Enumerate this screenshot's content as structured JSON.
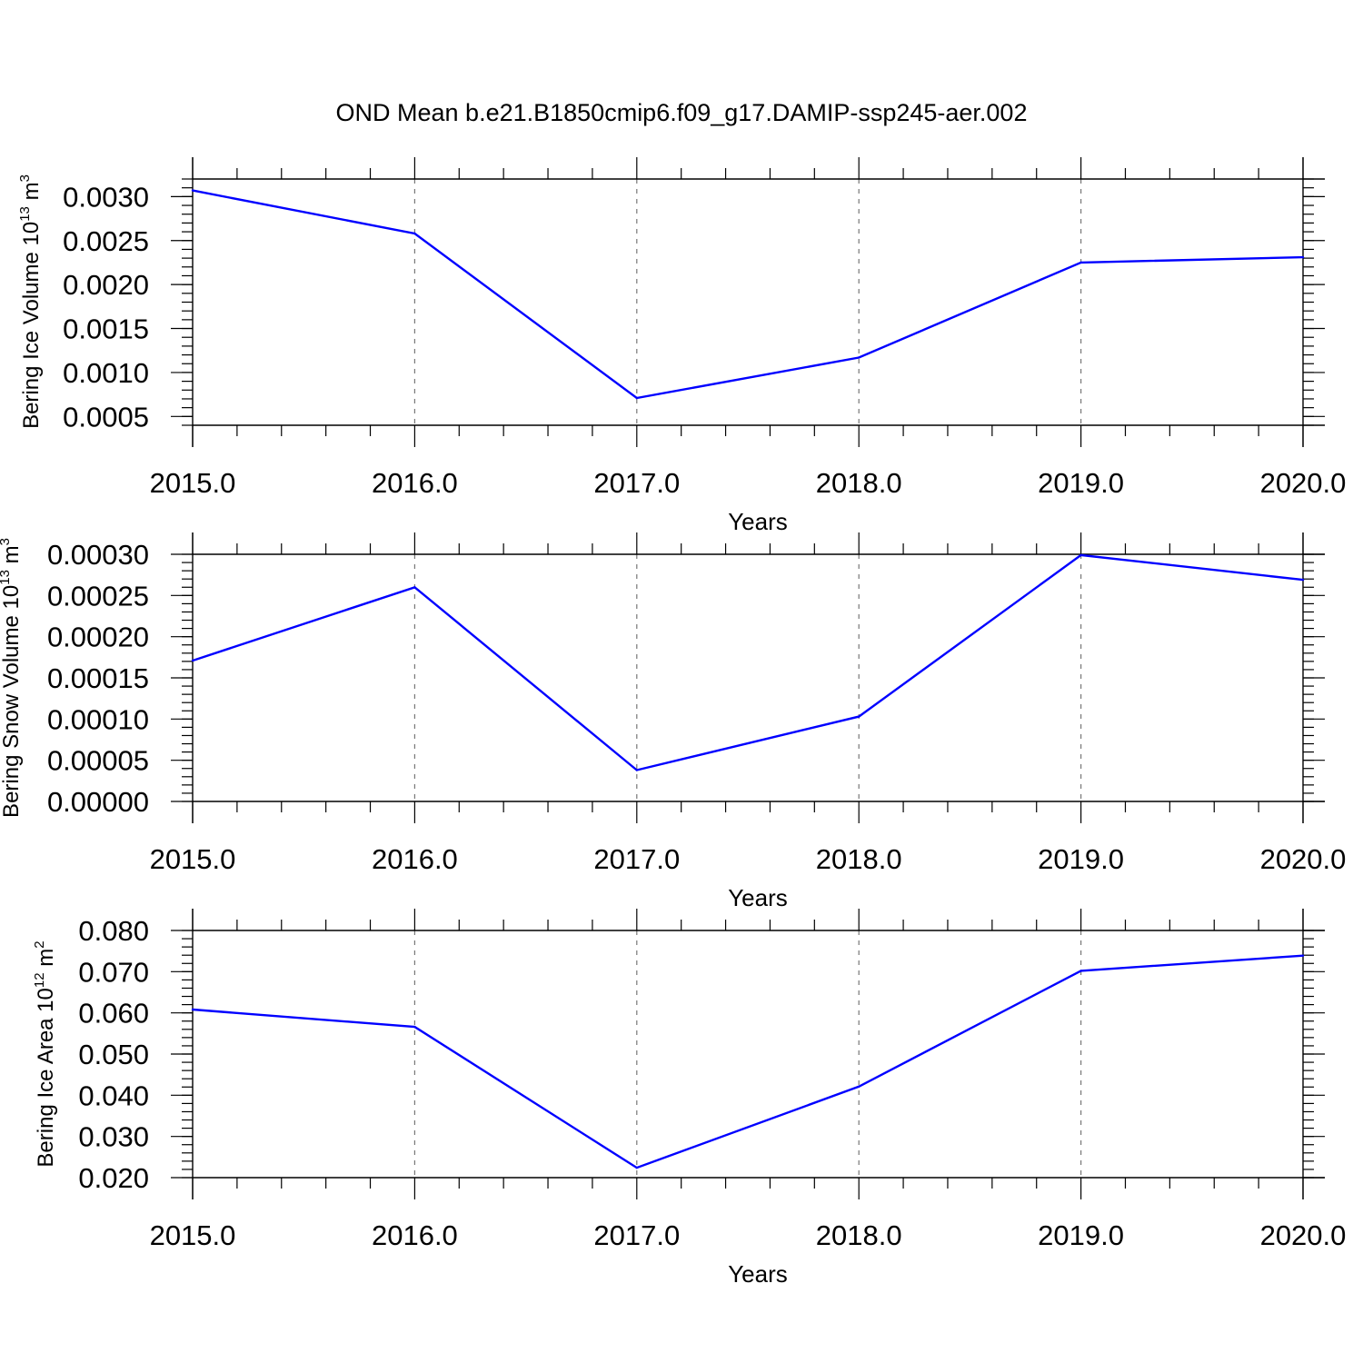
{
  "title": "OND Mean b.e21.B1850cmip6.f09_g17.DAMIP-ssp245-aer.002",
  "colors": {
    "series": "#0000ff",
    "grid": "#777777"
  },
  "chart_data": [
    {
      "type": "line",
      "ylabel": {
        "text": "Bering Ice Volume 10",
        "exp": "13",
        "unit": " m",
        "unit_exp": "3"
      },
      "xlabel": "Years",
      "x": [
        2015,
        2016,
        2017,
        2018,
        2019,
        2020
      ],
      "xticklabels": [
        "2015.0",
        "2016.0",
        "2017.0",
        "2018.0",
        "2019.0",
        "2020.0"
      ],
      "series": [
        {
          "values": [
            0.00307,
            0.00258,
            0.00071,
            0.00117,
            0.00225,
            0.00231
          ]
        }
      ],
      "xlim": [
        2015,
        2020
      ],
      "ylim": [
        0.0004,
        0.0032
      ],
      "yticks": [
        0.0005,
        0.001,
        0.0015,
        0.002,
        0.0025,
        0.003
      ],
      "yticklabels": [
        "0.0005",
        "0.0010",
        "0.0015",
        "0.0020",
        "0.0025",
        "0.0030"
      ],
      "yminor": 0.0001,
      "grid": "x-major dashed"
    },
    {
      "type": "line",
      "ylabel": {
        "text": "Bering Snow Volume 10",
        "exp": "13",
        "unit": " m",
        "unit_exp": "3"
      },
      "xlabel": "Years",
      "x": [
        2015,
        2016,
        2017,
        2018,
        2019,
        2020
      ],
      "xticklabels": [
        "2015.0",
        "2016.0",
        "2017.0",
        "2018.0",
        "2019.0",
        "2020.0"
      ],
      "series": [
        {
          "values": [
            0.000171,
            0.00026,
            3.8e-05,
            0.000103,
            0.000299,
            0.000269
          ]
        }
      ],
      "xlim": [
        2015,
        2020
      ],
      "ylim": [
        0.0,
        0.0003
      ],
      "yticks": [
        0.0,
        5e-05,
        0.0001,
        0.00015,
        0.0002,
        0.00025,
        0.0003
      ],
      "yticklabels": [
        "0.00000",
        "0.00005",
        "0.00010",
        "0.00015",
        "0.00020",
        "0.00025",
        "0.00030"
      ],
      "yminor": 1e-05,
      "grid": "x-major dashed"
    },
    {
      "type": "line",
      "ylabel": {
        "text": "Bering Ice Area 10",
        "exp": "12",
        "unit": " m",
        "unit_exp": "2"
      },
      "xlabel": "Years",
      "x": [
        2015,
        2016,
        2017,
        2018,
        2019,
        2020
      ],
      "xticklabels": [
        "2015.0",
        "2016.0",
        "2017.0",
        "2018.0",
        "2019.0",
        "2020.0"
      ],
      "series": [
        {
          "values": [
            0.0608,
            0.0566,
            0.0224,
            0.0421,
            0.0702,
            0.0739
          ]
        }
      ],
      "xlim": [
        2015,
        2020
      ],
      "ylim": [
        0.02,
        0.08
      ],
      "yticks": [
        0.02,
        0.03,
        0.04,
        0.05,
        0.06,
        0.07,
        0.08
      ],
      "yticklabels": [
        "0.020",
        "0.030",
        "0.040",
        "0.050",
        "0.060",
        "0.070",
        "0.080"
      ],
      "yminor": 0.002,
      "grid": "x-major dashed"
    }
  ]
}
